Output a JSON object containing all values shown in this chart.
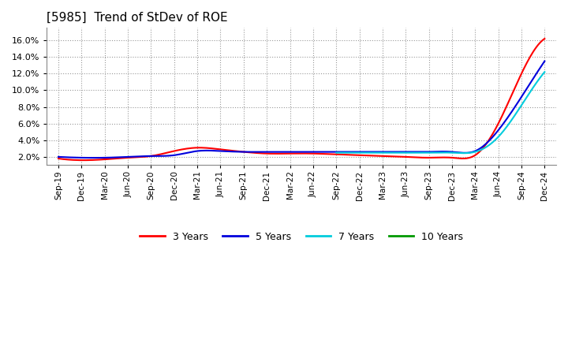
{
  "title": "[5985]  Trend of StDev of ROE",
  "title_fontsize": 11,
  "title_fontweight": "normal",
  "background_color": "#ffffff",
  "plot_background_color": "#ffffff",
  "grid_color": "#999999",
  "x_labels": [
    "Sep-19",
    "Dec-19",
    "Mar-20",
    "Jun-20",
    "Sep-20",
    "Dec-20",
    "Mar-21",
    "Jun-21",
    "Sep-21",
    "Dec-21",
    "Mar-22",
    "Jun-22",
    "Sep-22",
    "Dec-22",
    "Mar-23",
    "Jun-23",
    "Sep-23",
    "Dec-23",
    "Mar-24",
    "Jun-24",
    "Sep-24",
    "Dec-24"
  ],
  "ylim": [
    0.01,
    0.175
  ],
  "yticks": [
    0.02,
    0.04,
    0.06,
    0.08,
    0.1,
    0.12,
    0.14,
    0.16
  ],
  "series": {
    "3 Years": {
      "color": "#ff0000",
      "linewidth": 1.5,
      "values": [
        0.018,
        0.016,
        0.017,
        0.019,
        0.021,
        0.027,
        0.031,
        0.029,
        0.026,
        0.024,
        0.024,
        0.024,
        0.023,
        0.022,
        0.021,
        0.02,
        0.019,
        0.019,
        0.022,
        0.06,
        0.12,
        0.162
      ]
    },
    "5 Years": {
      "color": "#0000dd",
      "linewidth": 1.5,
      "values": [
        0.02,
        0.019,
        0.019,
        0.02,
        0.021,
        0.022,
        0.027,
        0.027,
        0.026,
        0.026,
        0.026,
        0.026,
        0.026,
        0.026,
        0.026,
        0.026,
        0.026,
        0.026,
        0.027,
        0.052,
        0.092,
        0.135
      ]
    },
    "7 Years": {
      "color": "#00ccdd",
      "linewidth": 1.5,
      "values": [
        null,
        null,
        null,
        null,
        null,
        null,
        null,
        null,
        null,
        null,
        null,
        null,
        0.025,
        0.025,
        0.025,
        0.025,
        0.025,
        0.025,
        0.026,
        0.044,
        0.082,
        0.122
      ]
    },
    "10 Years": {
      "color": "#009900",
      "linewidth": 1.5,
      "values": [
        null,
        null,
        null,
        null,
        null,
        null,
        null,
        null,
        null,
        null,
        null,
        null,
        null,
        null,
        null,
        null,
        null,
        null,
        null,
        null,
        null,
        null
      ]
    }
  },
  "legend_labels": [
    "3 Years",
    "5 Years",
    "7 Years",
    "10 Years"
  ],
  "legend_colors": [
    "#ff0000",
    "#0000dd",
    "#00ccdd",
    "#009900"
  ]
}
